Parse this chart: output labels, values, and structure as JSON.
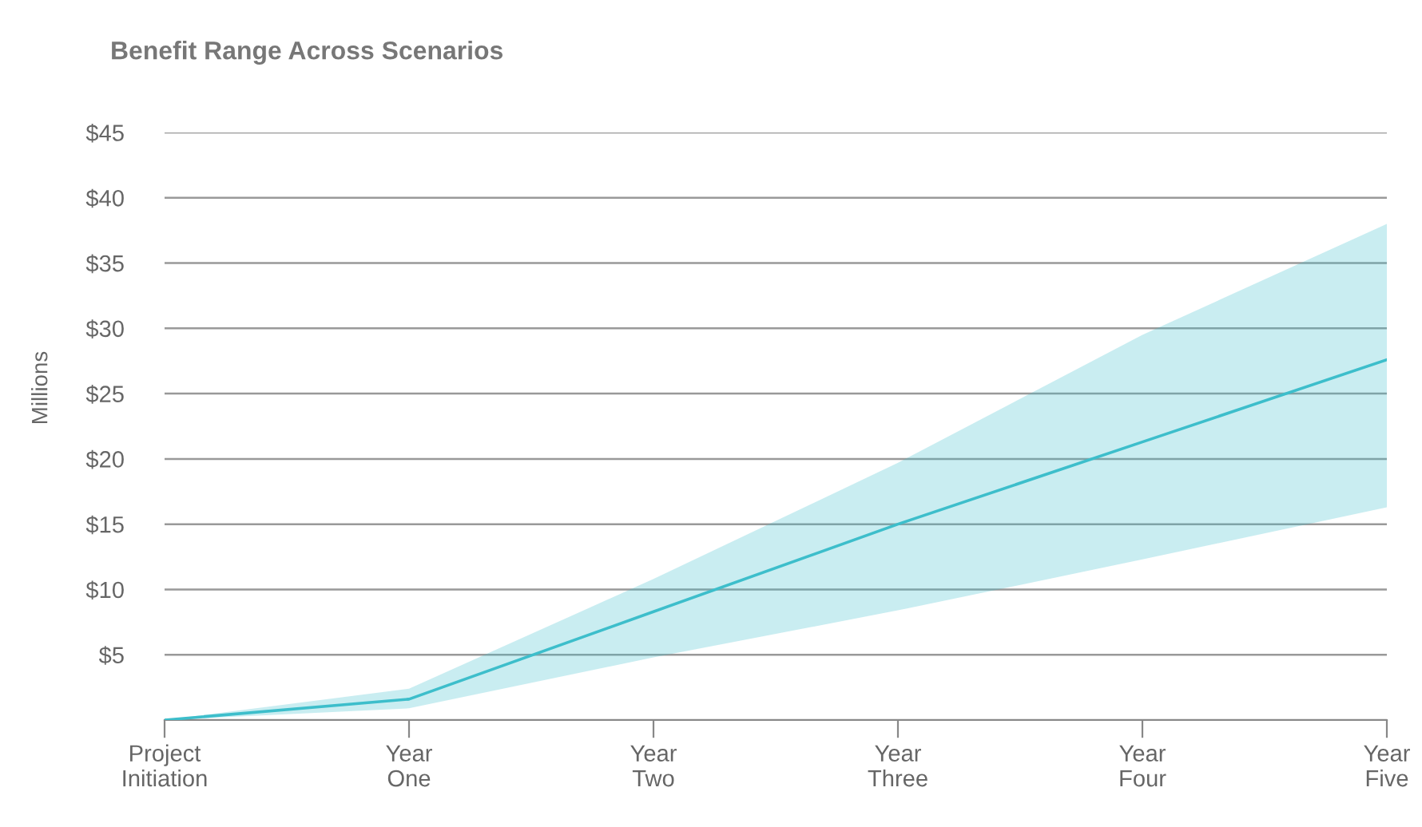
{
  "chart_data": {
    "type": "line",
    "title": "Benefit Range Across Scenarios",
    "ylabel": "Millions",
    "categories": [
      "Project\nInitiation",
      "Year\nOne",
      "Year\nTwo",
      "Year\nThree",
      "Year\nFour",
      "Year\nFive"
    ],
    "series": [
      {
        "color": "#3dbecb",
        "values": [
          0,
          1.6,
          8.3,
          15.0,
          21.3,
          27.6
        ],
        "lower": [
          0,
          0.9,
          4.8,
          8.4,
          12.3,
          16.3
        ],
        "upper": [
          0,
          2.4,
          10.8,
          19.7,
          29.5,
          38
        ]
      }
    ],
    "ylim": [
      0,
      45
    ],
    "yticks": [
      {
        "value": 0,
        "label": null
      },
      {
        "value": 5,
        "label": "$5"
      },
      {
        "value": 10,
        "label": "$10"
      },
      {
        "value": 15,
        "label": "$15"
      },
      {
        "value": 20,
        "label": "$20"
      },
      {
        "value": 25,
        "label": "$25"
      },
      {
        "value": 30,
        "label": "$30"
      },
      {
        "value": 35,
        "label": "$35"
      },
      {
        "value": 40,
        "label": "$40"
      },
      {
        "value": 45,
        "label": "$45"
      }
    ],
    "grid": "y",
    "marker": "none",
    "line_style": "solid"
  }
}
